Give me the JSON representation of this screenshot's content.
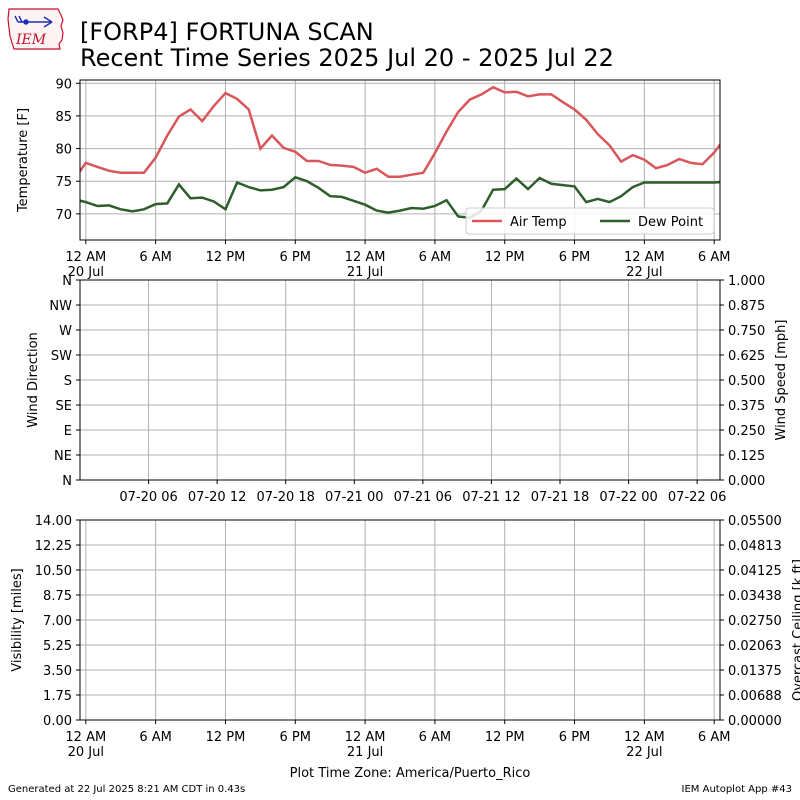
{
  "header": {
    "title_line1": "[FORP4] FORTUNA SCAN",
    "title_line2": "Recent Time Series 2025 Jul 20 - 2025 Jul 22",
    "logo_text": "IEM"
  },
  "footer": {
    "generated": "Generated at 22 Jul 2025 8:21 AM CDT in 0.43s",
    "app": "IEM Autoplot App #43"
  },
  "colors": {
    "air_temp": "#d9575b",
    "dew_point": "#2e5e2b",
    "grid": "#b0b0b0",
    "ceiling_axis": "#008000",
    "logo_red": "#c8102e",
    "logo_blue": "#1a2fb5"
  },
  "chart_data": [
    {
      "type": "line",
      "panel": "temperature",
      "ylabel": "Temperature [F]",
      "ylim": [
        66,
        90.5
      ],
      "yticks": [
        70,
        75,
        80,
        85,
        90
      ],
      "xlim_hours": [
        -0.5,
        54.5
      ],
      "xticks": [
        {
          "hour": 0,
          "label": "12 AM",
          "sub": "20 Jul"
        },
        {
          "hour": 6,
          "label": "6 AM",
          "sub": ""
        },
        {
          "hour": 12,
          "label": "12 PM",
          "sub": ""
        },
        {
          "hour": 18,
          "label": "6 PM",
          "sub": ""
        },
        {
          "hour": 24,
          "label": "12 AM",
          "sub": "21 Jul"
        },
        {
          "hour": 30,
          "label": "6 AM",
          "sub": ""
        },
        {
          "hour": 36,
          "label": "12 PM",
          "sub": ""
        },
        {
          "hour": 42,
          "label": "6 PM",
          "sub": ""
        },
        {
          "hour": 48,
          "label": "12 AM",
          "sub": "22 Jul"
        },
        {
          "hour": 54,
          "label": "6 AM",
          "sub": ""
        }
      ],
      "grid": true,
      "legend_position": "lower-right",
      "series": [
        {
          "name": "Air Temp",
          "color": "#d9575b",
          "points": [
            [
              -0.9,
              75.5
            ],
            [
              0,
              77.8
            ],
            [
              1,
              77.2
            ],
            [
              2,
              76.6
            ],
            [
              3,
              76.3
            ],
            [
              4,
              76.3
            ],
            [
              5,
              76.3
            ],
            [
              6,
              78.6
            ],
            [
              7,
              82.0
            ],
            [
              8,
              84.9
            ],
            [
              9,
              86.0
            ],
            [
              10,
              84.2
            ],
            [
              11,
              86.5
            ],
            [
              12,
              88.5
            ],
            [
              13,
              87.6
            ],
            [
              14,
              86.0
            ],
            [
              15,
              80.0
            ],
            [
              16,
              82.0
            ],
            [
              17,
              80.1
            ],
            [
              18,
              79.5
            ],
            [
              19,
              78.1
            ],
            [
              20,
              78.1
            ],
            [
              21,
              77.5
            ],
            [
              22,
              77.4
            ],
            [
              23,
              77.2
            ],
            [
              24,
              76.3
            ],
            [
              25,
              76.9
            ],
            [
              26,
              75.7
            ],
            [
              27,
              75.7
            ],
            [
              28,
              76.0
            ],
            [
              29,
              76.3
            ],
            [
              30,
              79.3
            ],
            [
              31,
              82.6
            ],
            [
              32,
              85.6
            ],
            [
              33,
              87.5
            ],
            [
              34,
              88.3
            ],
            [
              35,
              89.4
            ],
            [
              36,
              88.6
            ],
            [
              37,
              88.7
            ],
            [
              38,
              88.0
            ],
            [
              39,
              88.3
            ],
            [
              40,
              88.3
            ],
            [
              41,
              87.1
            ],
            [
              42,
              86.0
            ],
            [
              43,
              84.4
            ],
            [
              44,
              82.2
            ],
            [
              45,
              80.5
            ],
            [
              46,
              78.0
            ],
            [
              47,
              79.0
            ],
            [
              48,
              78.3
            ],
            [
              49,
              77.0
            ],
            [
              50,
              77.5
            ],
            [
              51,
              78.4
            ],
            [
              52,
              77.8
            ],
            [
              53,
              77.6
            ],
            [
              54,
              79.4
            ],
            [
              54.8,
              81.3
            ]
          ]
        },
        {
          "name": "Dew Point",
          "color": "#2e5e2b",
          "points": [
            [
              -0.9,
              72.2
            ],
            [
              0,
              71.8
            ],
            [
              1,
              71.2
            ],
            [
              2,
              71.3
            ],
            [
              3,
              70.7
            ],
            [
              4,
              70.4
            ],
            [
              5,
              70.7
            ],
            [
              6,
              71.5
            ],
            [
              7,
              71.6
            ],
            [
              8,
              74.5
            ],
            [
              9,
              72.4
            ],
            [
              10,
              72.5
            ],
            [
              11,
              71.9
            ],
            [
              12,
              70.7
            ],
            [
              13,
              74.8
            ],
            [
              14,
              74.1
            ],
            [
              15,
              73.6
            ],
            [
              16,
              73.7
            ],
            [
              17,
              74.1
            ],
            [
              18,
              75.6
            ],
            [
              19,
              75.0
            ],
            [
              20,
              74.0
            ],
            [
              21,
              72.7
            ],
            [
              22,
              72.6
            ],
            [
              23,
              72.0
            ],
            [
              24,
              71.4
            ],
            [
              25,
              70.5
            ],
            [
              26,
              70.2
            ],
            [
              27,
              70.5
            ],
            [
              28,
              70.9
            ],
            [
              29,
              70.8
            ],
            [
              30,
              71.2
            ],
            [
              31,
              72.1
            ],
            [
              32,
              69.6
            ],
            [
              33,
              69.4
            ],
            [
              34,
              70.5
            ],
            [
              35,
              73.7
            ],
            [
              36,
              73.8
            ],
            [
              37,
              75.4
            ],
            [
              38,
              73.8
            ],
            [
              39,
              75.5
            ],
            [
              40,
              74.6
            ],
            [
              41,
              74.4
            ],
            [
              42,
              74.2
            ],
            [
              43,
              71.8
            ],
            [
              44,
              72.3
            ],
            [
              45,
              71.8
            ],
            [
              46,
              72.7
            ],
            [
              47,
              74.1
            ],
            [
              48,
              74.8
            ],
            [
              49,
              74.8
            ],
            [
              50,
              74.8
            ],
            [
              51,
              74.8
            ],
            [
              52,
              74.8
            ],
            [
              53,
              74.8
            ],
            [
              54,
              74.8
            ],
            [
              54.8,
              74.9
            ]
          ]
        }
      ]
    },
    {
      "type": "line",
      "panel": "wind",
      "ylabel": "Wind Direction",
      "y2label": "Wind Speed [mph]",
      "ylim": [
        0,
        360
      ],
      "ytick_labels": [
        "N",
        "NE",
        "E",
        "SE",
        "S",
        "SW",
        "W",
        "NW",
        "N"
      ],
      "y2lim": [
        0,
        1
      ],
      "y2tick_labels": [
        "0.000",
        "0.125",
        "0.250",
        "0.375",
        "0.500",
        "0.625",
        "0.750",
        "0.875",
        "1.000"
      ],
      "xticks": [
        {
          "hour": 6,
          "label": "07-20 06"
        },
        {
          "hour": 12,
          "label": "07-20 12"
        },
        {
          "hour": 18,
          "label": "07-20 18"
        },
        {
          "hour": 24,
          "label": "07-21 00"
        },
        {
          "hour": 30,
          "label": "07-21 06"
        },
        {
          "hour": 36,
          "label": "07-21 12"
        },
        {
          "hour": 42,
          "label": "07-21 18"
        },
        {
          "hour": 48,
          "label": "07-22 00"
        },
        {
          "hour": 54,
          "label": "07-22 06"
        }
      ],
      "xlim_hours": [
        0,
        56
      ],
      "grid": true,
      "series": []
    },
    {
      "type": "line",
      "panel": "visibility",
      "ylabel": "Visibility [miles]",
      "y2label": "Overcast Ceiling [k ft]",
      "ylim": [
        0,
        14
      ],
      "ytick_labels": [
        "0.00",
        "1.75",
        "3.50",
        "5.25",
        "7.00",
        "8.75",
        "10.50",
        "12.25",
        "14.00"
      ],
      "y2lim": [
        0,
        0.055
      ],
      "y2tick_labels": [
        "0.00000",
        "0.00688",
        "0.01375",
        "0.02063",
        "0.02750",
        "0.03438",
        "0.04125",
        "0.04813",
        "0.05500"
      ],
      "xlim_hours": [
        -0.5,
        54.5
      ],
      "xticks": [
        {
          "hour": 0,
          "label": "12 AM",
          "sub": "20 Jul"
        },
        {
          "hour": 6,
          "label": "6 AM",
          "sub": ""
        },
        {
          "hour": 12,
          "label": "12 PM",
          "sub": ""
        },
        {
          "hour": 18,
          "label": "6 PM",
          "sub": ""
        },
        {
          "hour": 24,
          "label": "12 AM",
          "sub": "21 Jul"
        },
        {
          "hour": 30,
          "label": "6 AM",
          "sub": ""
        },
        {
          "hour": 36,
          "label": "12 PM",
          "sub": ""
        },
        {
          "hour": 42,
          "label": "6 PM",
          "sub": ""
        },
        {
          "hour": 48,
          "label": "12 AM",
          "sub": "22 Jul"
        },
        {
          "hour": 54,
          "label": "6 AM",
          "sub": ""
        }
      ],
      "xlabel": "Plot Time Zone: America/Puerto_Rico",
      "grid": true,
      "series": []
    }
  ]
}
